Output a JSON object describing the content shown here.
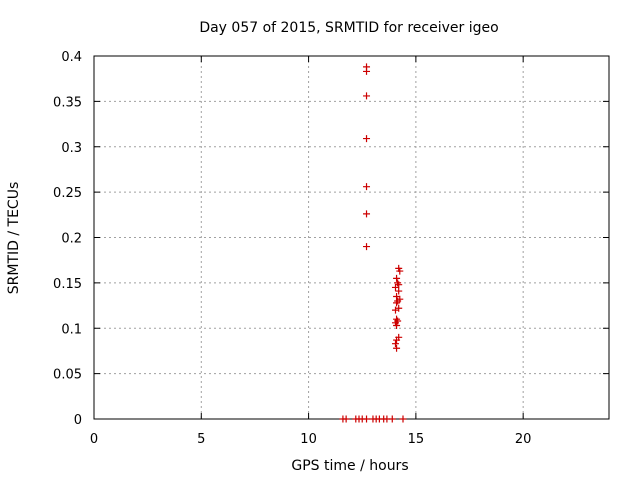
{
  "chart_data": {
    "type": "scatter",
    "title": "Day 057 of 2015, SRMTID for receiver igeo",
    "xlabel": "GPS time / hours",
    "ylabel": "SRMTID / TECUs",
    "xlim": [
      0,
      24
    ],
    "ylim": [
      0,
      0.4
    ],
    "xticks": [
      0,
      5,
      10,
      15,
      20
    ],
    "xtick_labels": [
      "0",
      "5",
      "10",
      "15",
      "20"
    ],
    "yticks": [
      0,
      0.05,
      0.1,
      0.15,
      0.2,
      0.25,
      0.3,
      0.35,
      0.4
    ],
    "ytick_labels": [
      "0",
      "0.05",
      "0.1",
      "0.15",
      "0.2",
      "0.25",
      "0.3",
      "0.35",
      "0.4"
    ],
    "grid": true,
    "marker": "plus",
    "color": "#cc0000",
    "series": [
      {
        "name": "SRMTID",
        "x": [
          12.7,
          12.7,
          12.7,
          12.7,
          12.7,
          12.7,
          12.7,
          14.2,
          14.25,
          14.1,
          14.15,
          14.2,
          14.05,
          14.2,
          14.1,
          14.25,
          14.15,
          14.1,
          14.2,
          14.05,
          14.1,
          14.15,
          14.05,
          14.1,
          14.2,
          14.1,
          14.05,
          14.1,
          11.6,
          11.75,
          12.2,
          12.35,
          12.5,
          12.7,
          13.0,
          13.15,
          13.3,
          13.5,
          13.65,
          13.9,
          14.4
        ],
        "y": [
          0.388,
          0.383,
          0.356,
          0.309,
          0.256,
          0.226,
          0.19,
          0.166,
          0.163,
          0.155,
          0.15,
          0.148,
          0.145,
          0.141,
          0.135,
          0.132,
          0.13,
          0.128,
          0.122,
          0.12,
          0.11,
          0.108,
          0.106,
          0.103,
          0.09,
          0.087,
          0.083,
          0.078,
          0,
          0,
          0,
          0,
          0,
          0,
          0,
          0,
          0,
          0,
          0,
          0,
          0
        ]
      }
    ]
  }
}
